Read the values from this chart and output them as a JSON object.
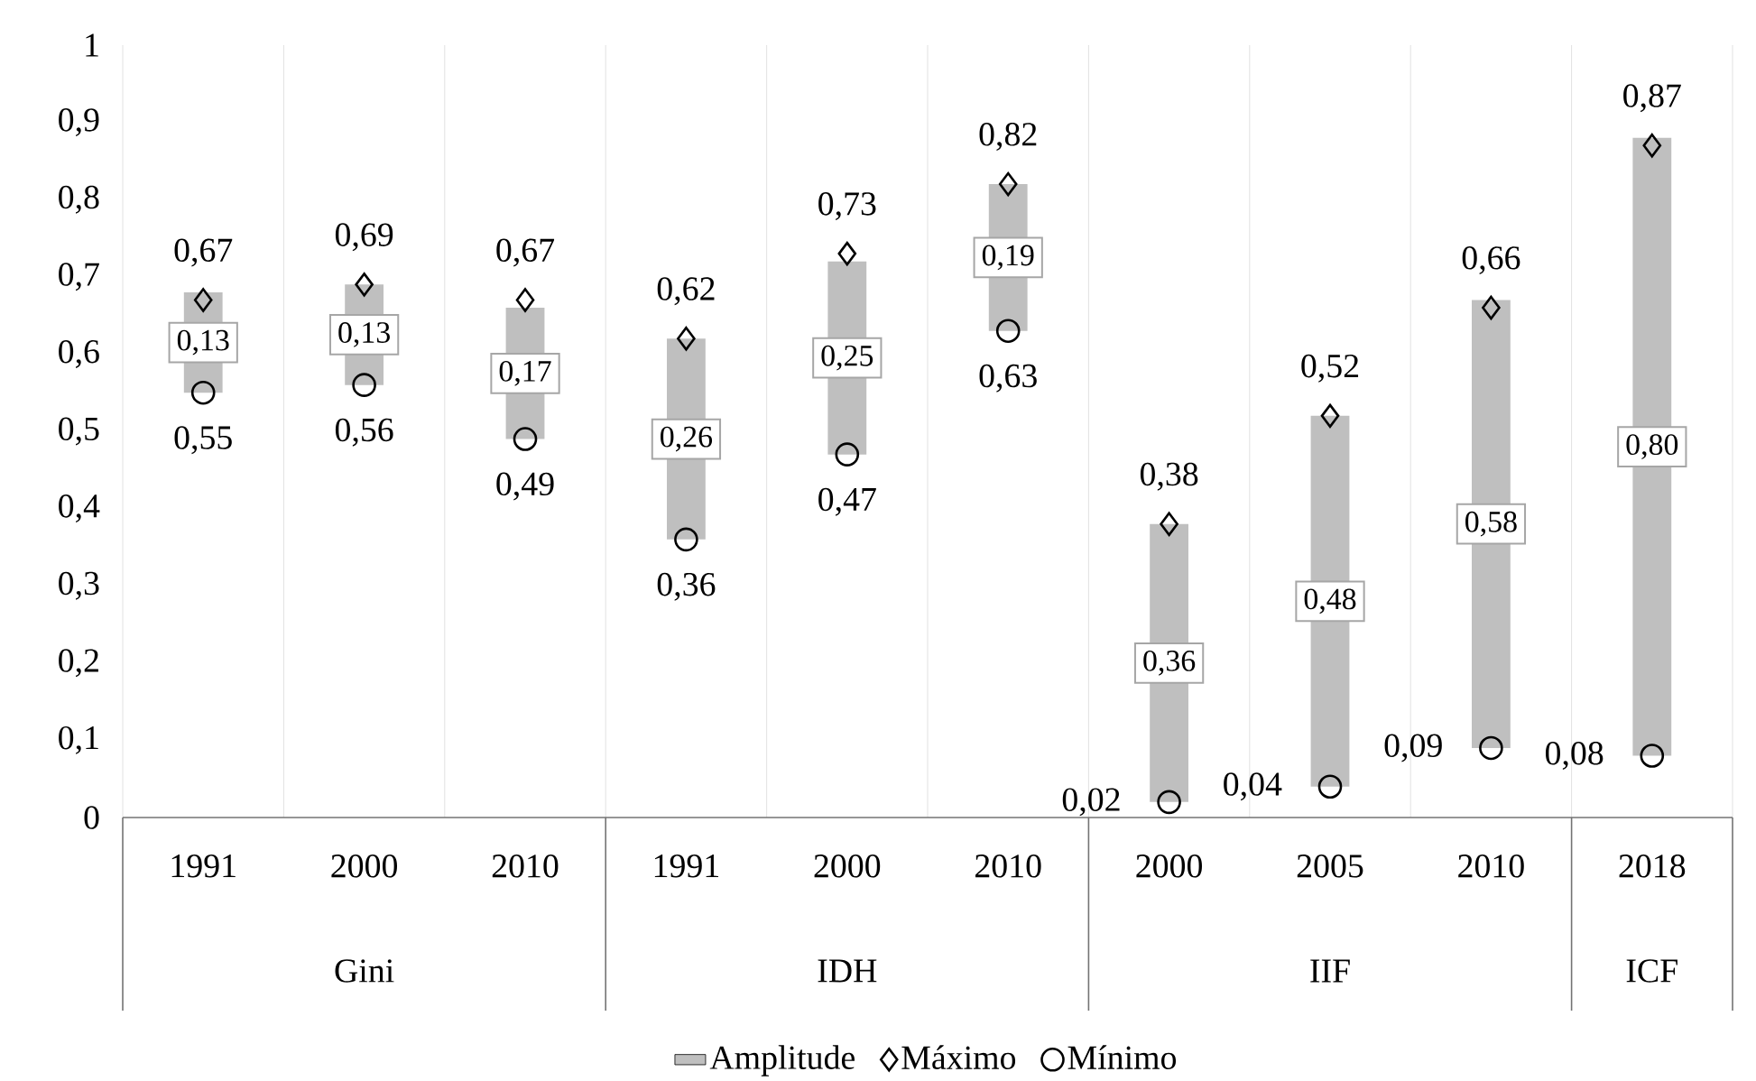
{
  "chart_data": {
    "type": "bar",
    "categories": [
      "1991",
      "2000",
      "2010",
      "1991",
      "2000",
      "2010",
      "2000",
      "2005",
      "2010",
      "2018"
    ],
    "series": [
      {
        "name": "Amplitude",
        "color": "#bfbfbf",
        "base": [
          0.55,
          0.56,
          0.49,
          0.36,
          0.47,
          0.63,
          0.02,
          0.04,
          0.09,
          0.08
        ],
        "values": [
          0.13,
          0.13,
          0.17,
          0.26,
          0.25,
          0.19,
          0.36,
          0.48,
          0.58,
          0.8
        ],
        "value_labels": [
          "0,13",
          "0,13",
          "0,17",
          "0,26",
          "0,25",
          "0,19",
          "0,36",
          "0,48",
          "0,58",
          "0,80"
        ]
      },
      {
        "name": "Máximo",
        "type": "scatter",
        "marker": "diamond",
        "color": "#000000",
        "values": [
          0.67,
          0.69,
          0.67,
          0.62,
          0.73,
          0.82,
          0.38,
          0.52,
          0.66,
          0.87
        ],
        "value_labels": [
          "0,67",
          "0,69",
          "0,67",
          "0,62",
          "0,73",
          "0,82",
          "0,38",
          "0,52",
          "0,66",
          "0,87"
        ]
      },
      {
        "name": "Mínimo",
        "type": "scatter",
        "marker": "circle",
        "color": "#000000",
        "values": [
          0.55,
          0.56,
          0.49,
          0.36,
          0.47,
          0.63,
          0.02,
          0.04,
          0.09,
          0.08
        ],
        "value_labels": [
          "0,55",
          "0,56",
          "0,49",
          "0,36",
          "0,47",
          "0,63",
          "0,02",
          "0,04",
          "0,09",
          "0,08"
        ]
      }
    ],
    "ylim": [
      0,
      1
    ],
    "yticks": [
      0,
      {
        "value": 0.1,
        "label": "0,1"
      },
      {
        "value": 0.2,
        "label": "0,2"
      },
      {
        "value": 0.3,
        "label": "0,3"
      },
      {
        "value": 0.4,
        "label": "0,4"
      },
      {
        "value": 0.5,
        "label": "0,5"
      },
      {
        "value": 0.6,
        "label": "0,6"
      },
      {
        "value": 0.7,
        "label": "0,7"
      },
      {
        "value": 0.8,
        "label": "0,8"
      },
      {
        "value": 0.9,
        "label": "0,9"
      },
      1
    ],
    "annotations": [
      "Gini",
      "IDH",
      "IIF",
      "ICF"
    ],
    "grid": "x",
    "legend": "bottom"
  }
}
